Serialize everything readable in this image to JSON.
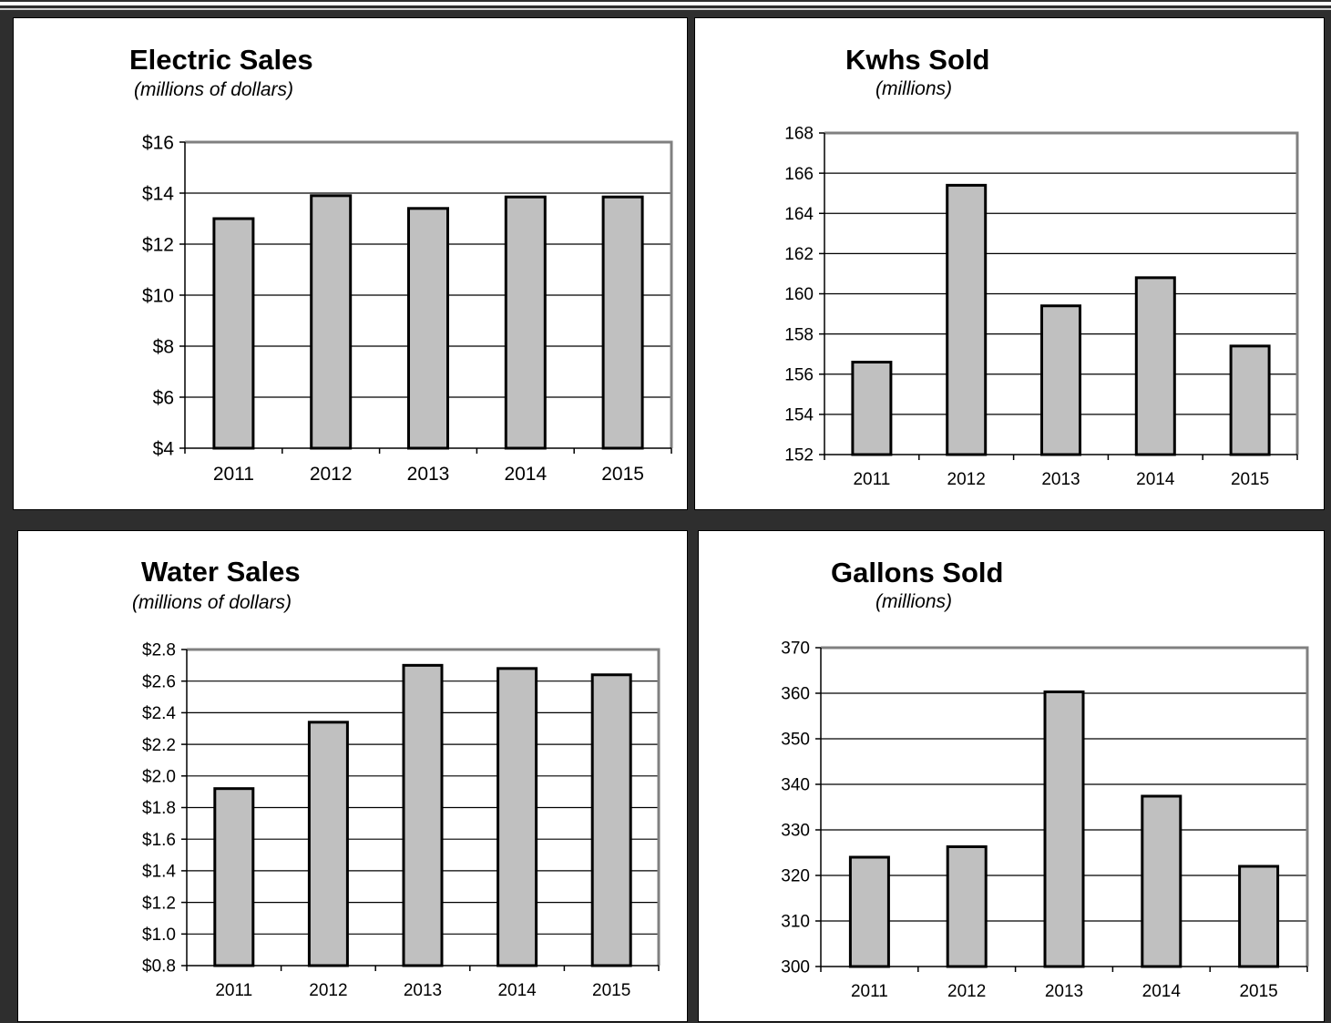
{
  "charts": [
    {
      "id": "electric",
      "title": "Electric Sales",
      "subtitle": "(millions of dollars)",
      "chart_data": {
        "type": "bar",
        "title": "Electric Sales",
        "subtitle": "(millions of dollars)",
        "categories": [
          "2011",
          "2012",
          "2013",
          "2014",
          "2015"
        ],
        "values": [
          13.0,
          13.9,
          13.4,
          13.85,
          13.85
        ],
        "ylim": [
          4,
          16
        ],
        "yticks": [
          4,
          6,
          8,
          10,
          12,
          14,
          16
        ],
        "ytick_labels": [
          "$4",
          "$6",
          "$8",
          "$10",
          "$12",
          "$14",
          "$16"
        ],
        "grid": true
      }
    },
    {
      "id": "kwhs",
      "title": "Kwhs Sold",
      "subtitle": "(millions)",
      "chart_data": {
        "type": "bar",
        "title": "Kwhs Sold",
        "subtitle": "(millions)",
        "categories": [
          "2011",
          "2012",
          "2013",
          "2014",
          "2015"
        ],
        "values": [
          156.6,
          165.4,
          159.4,
          160.8,
          157.4
        ],
        "ylim": [
          152,
          168
        ],
        "yticks": [
          152,
          154,
          156,
          158,
          160,
          162,
          164,
          166,
          168
        ],
        "ytick_labels": [
          "152",
          "154",
          "156",
          "158",
          "160",
          "162",
          "164",
          "166",
          "168"
        ],
        "grid": true
      }
    },
    {
      "id": "water",
      "title": "Water Sales",
      "subtitle": "(millions of dollars)",
      "chart_data": {
        "type": "bar",
        "title": "Water Sales",
        "subtitle": "(millions of dollars)",
        "categories": [
          "2011",
          "2012",
          "2013",
          "2014",
          "2015"
        ],
        "values": [
          1.92,
          2.34,
          2.7,
          2.68,
          2.64
        ],
        "ylim": [
          0.8,
          2.8
        ],
        "yticks": [
          0.8,
          1.0,
          1.2,
          1.4,
          1.6,
          1.8,
          2.0,
          2.2,
          2.4,
          2.6,
          2.8
        ],
        "ytick_labels": [
          "$0.8",
          "$1.0",
          "$1.2",
          "$1.4",
          "$1.6",
          "$1.8",
          "$2.0",
          "$2.2",
          "$2.4",
          "$2.6",
          "$2.8"
        ],
        "grid": true
      }
    },
    {
      "id": "gallons",
      "title": "Gallons Sold",
      "subtitle": "(millions)",
      "chart_data": {
        "type": "bar",
        "title": "Gallons Sold",
        "subtitle": "(millions)",
        "categories": [
          "2011",
          "2012",
          "2013",
          "2014",
          "2015"
        ],
        "values": [
          324,
          326.3,
          360.3,
          337.4,
          322
        ],
        "ylim": [
          300,
          370
        ],
        "yticks": [
          300,
          310,
          320,
          330,
          340,
          350,
          360,
          370
        ],
        "ytick_labels": [
          "300",
          "310",
          "320",
          "330",
          "340",
          "350",
          "360",
          "370"
        ],
        "grid": true
      }
    }
  ],
  "colors": {
    "bar_fill": "#c0c0c0",
    "bar_stroke": "#000000",
    "gridline": "#000000",
    "plot_border": "#808080",
    "background": "#2e2e2e"
  }
}
